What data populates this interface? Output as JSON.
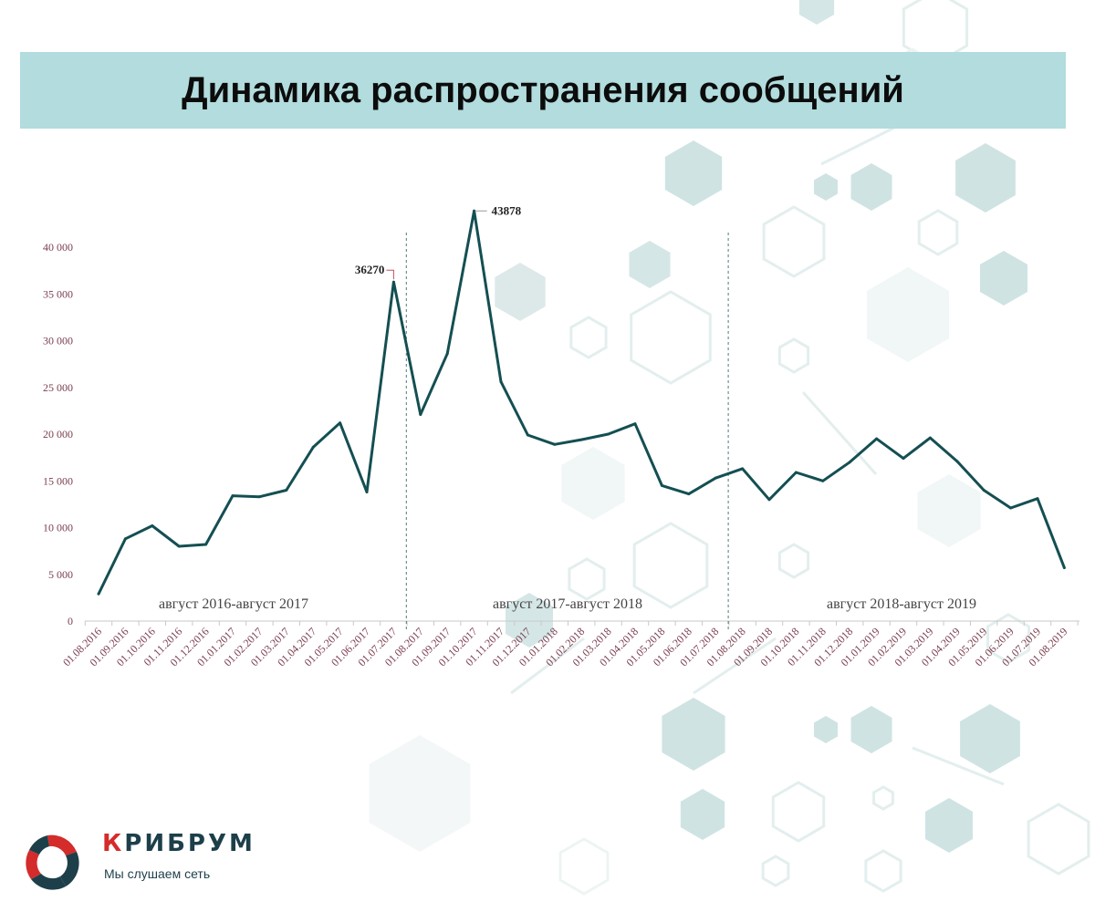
{
  "header": {
    "title": "Динамика распространения сообщений"
  },
  "brand": {
    "name_first": "К",
    "name_rest": "РИБРУМ",
    "tagline": "Мы слушаем сеть",
    "colors": {
      "red": "#d42b2b",
      "dark": "#1d3f4a"
    }
  },
  "chart_data": {
    "type": "line",
    "title": "",
    "xlabel": "",
    "ylabel": "",
    "ylim": [
      0,
      40000
    ],
    "yticks": [
      0,
      5000,
      10000,
      15000,
      20000,
      25000,
      30000,
      35000,
      40000
    ],
    "ytick_labels": [
      "0",
      "5 000",
      "10 000",
      "15 000",
      "20 000",
      "25 000",
      "30 000",
      "35 000",
      "40 000"
    ],
    "grid": false,
    "categories": [
      "01.08.2016",
      "01.09.2016",
      "01.10.2016",
      "01.11.2016",
      "01.12.2016",
      "01.01.2017",
      "01.02.2017",
      "01.03.2017",
      "01.04.2017",
      "01.05.2017",
      "01.06.2017",
      "01.07.2017",
      "01.08.2017",
      "01.09.2017",
      "01.10.2017",
      "01.11.2017",
      "01.12.2017",
      "01.01.2018",
      "01.02.2018",
      "01.03.2018",
      "01.04.2018",
      "01.05.2018",
      "01.06.2018",
      "01.07.2018",
      "01.08.2018",
      "01.09.2018",
      "01.10.2018",
      "01.11.2018",
      "01.12.2018",
      "01.01.2019",
      "01.02.2019",
      "01.03.2019",
      "01.04.2019",
      "01.05.2019",
      "01.06.2019",
      "01.07.2019",
      "01.08.2019"
    ],
    "values": [
      2900,
      8800,
      10200,
      8000,
      8200,
      13400,
      13300,
      14000,
      18600,
      21200,
      13800,
      36270,
      22100,
      28600,
      43878,
      25600,
      19900,
      18900,
      19400,
      20000,
      21100,
      14500,
      13600,
      15300,
      16300,
      13000,
      15900,
      15000,
      17000,
      19500,
      17400,
      19600,
      17100,
      14000,
      12100,
      13100,
      5700
    ],
    "line_color": "#144f52",
    "annotations": [
      {
        "label": "36270",
        "index": 11
      },
      {
        "label": "43878",
        "index": 14
      }
    ],
    "separators": [
      12,
      24
    ],
    "periods": [
      "август 2016-август 2017",
      "август 2017-август 2018",
      "август 2018-август 2019"
    ]
  }
}
